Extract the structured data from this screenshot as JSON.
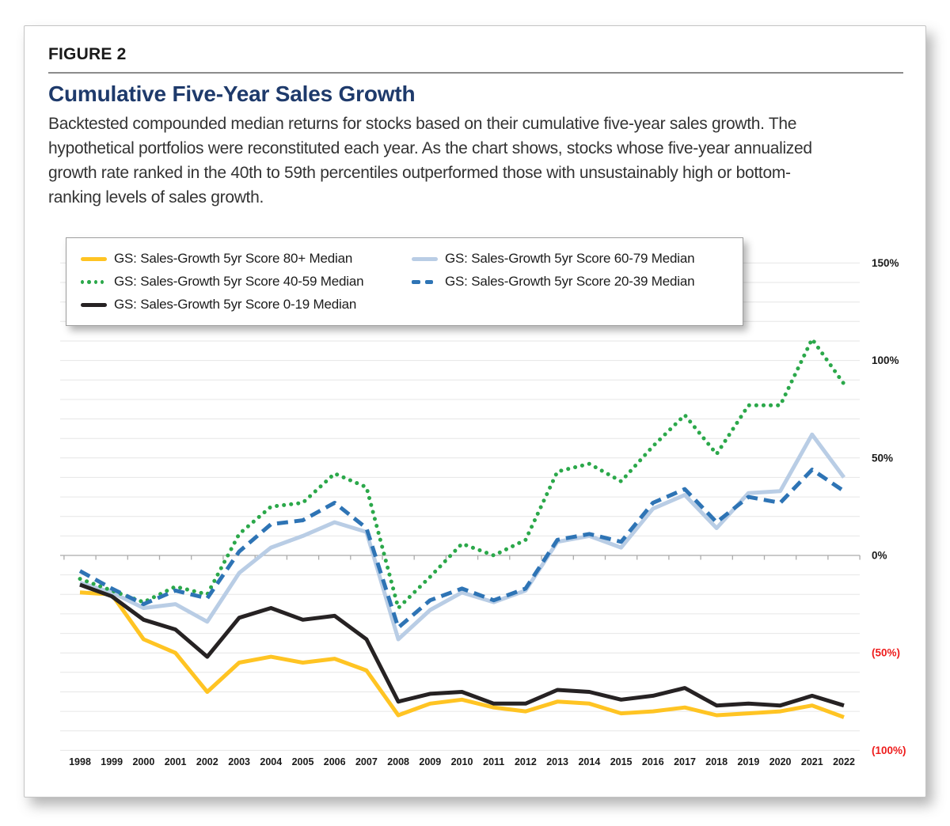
{
  "figure": {
    "kicker": "FIGURE 2",
    "title": "Cumulative Five-Year Sales Growth",
    "description": "Backtested compounded median returns for stocks based on their cumulative five-year sales growth. The hypothetical portfolios were reconstituted each year. As the chart shows, stocks whose five-year annualized growth rate ranked in the 40th to 59th percentiles outperformed those with unsustainably high or bottom-ranking levels of sales growth."
  },
  "colors": {
    "title_navy": "#1e3a6b",
    "gridline": "#e6e6e6",
    "zero_axis": "#ababab",
    "axis_label": "#1a1a1a",
    "negative_label": "#ee1c1c"
  },
  "chart_data": {
    "type": "line",
    "title": "Cumulative Five-Year Sales Growth",
    "x": [
      1998,
      1999,
      2000,
      2001,
      2002,
      2003,
      2004,
      2005,
      2006,
      2007,
      2008,
      2009,
      2010,
      2011,
      2012,
      2013,
      2014,
      2015,
      2016,
      2017,
      2018,
      2019,
      2020,
      2021,
      2022
    ],
    "x_labels": [
      "1998",
      "1999",
      "2000",
      "2001",
      "2002",
      "2003",
      "2004",
      "2005",
      "2006",
      "2007",
      "2008",
      "2009",
      "2010",
      "2011",
      "2012",
      "2013",
      "2014",
      "2015",
      "2016",
      "2017",
      "2018",
      "2019",
      "2020",
      "2021",
      "2022"
    ],
    "y_axis": {
      "range": [
        -100,
        150
      ],
      "gridline_step": 10,
      "unit": "percent",
      "ticks": [
        {
          "label": "150%",
          "value": 150
        },
        {
          "label": "100%",
          "value": 100
        },
        {
          "label": "50%",
          "value": 50
        },
        {
          "label": "0%",
          "value": 0
        },
        {
          "label": "(50%)",
          "value": -50
        },
        {
          "label": "(100%)",
          "value": -100
        }
      ]
    },
    "legend_position": "top-left",
    "series": [
      {
        "key": "score-80plus",
        "name": "GS: Sales-Growth 5yr Score 80+ Median",
        "color": "#ffc423",
        "style": "solid",
        "values": [
          -19,
          -20,
          -43,
          -50,
          -70,
          -55,
          -52,
          -55,
          -53,
          -59,
          -82,
          -76,
          -74,
          -78,
          -80,
          -75,
          -76,
          -81,
          -80,
          -78,
          -82,
          -81,
          -80,
          -77,
          -83
        ]
      },
      {
        "key": "score-60-79",
        "name": "GS: Sales-Growth 5yr Score 60-79 Median",
        "color": "#b9cde5",
        "style": "solid",
        "values": [
          -14,
          -19,
          -27,
          -25,
          -34,
          -9,
          4,
          10,
          17,
          12,
          -43,
          -28,
          -19,
          -24,
          -18,
          7,
          10,
          4,
          24,
          31,
          14,
          32,
          33,
          62,
          40
        ]
      },
      {
        "key": "score-40-59",
        "name": "GS: Sales-Growth 5yr Score 40-59 Median",
        "color": "#2ba84a",
        "style": "dotted",
        "values": [
          -12,
          -18,
          -24,
          -16,
          -20,
          11,
          25,
          27,
          42,
          35,
          -27,
          -11,
          6,
          0,
          8,
          43,
          47,
          38,
          56,
          72,
          52,
          77,
          77,
          111,
          88
        ]
      },
      {
        "key": "score-20-39",
        "name": "GS: Sales-Growth 5yr Score 20-39 Median",
        "color": "#2e74b5",
        "style": "dashed",
        "values": [
          -8,
          -17,
          -25,
          -18,
          -22,
          2,
          16,
          18,
          27,
          14,
          -37,
          -23,
          -17,
          -23,
          -17,
          8,
          11,
          7,
          27,
          34,
          17,
          30,
          27,
          44,
          33
        ]
      },
      {
        "key": "score-0-19",
        "name": "GS: Sales-Growth 5yr Score 0-19 Median",
        "color": "#262223",
        "style": "solid",
        "values": [
          -15,
          -21,
          -33,
          -38,
          -52,
          -32,
          -27,
          -33,
          -31,
          -43,
          -75,
          -71,
          -70,
          -76,
          -76,
          -69,
          -70,
          -74,
          -72,
          -68,
          -77,
          -76,
          -77,
          -72,
          -77
        ]
      }
    ],
    "legend_entries": [
      "GS: Sales-Growth 5yr Score 80+ Median",
      "GS: Sales-Growth 5yr Score 60-79 Median",
      "GS: Sales-Growth 5yr Score 40-59 Median",
      "GS: Sales-Growth 5yr Score 20-39 Median",
      "GS: Sales-Growth 5yr Score 0-19 Median"
    ]
  }
}
